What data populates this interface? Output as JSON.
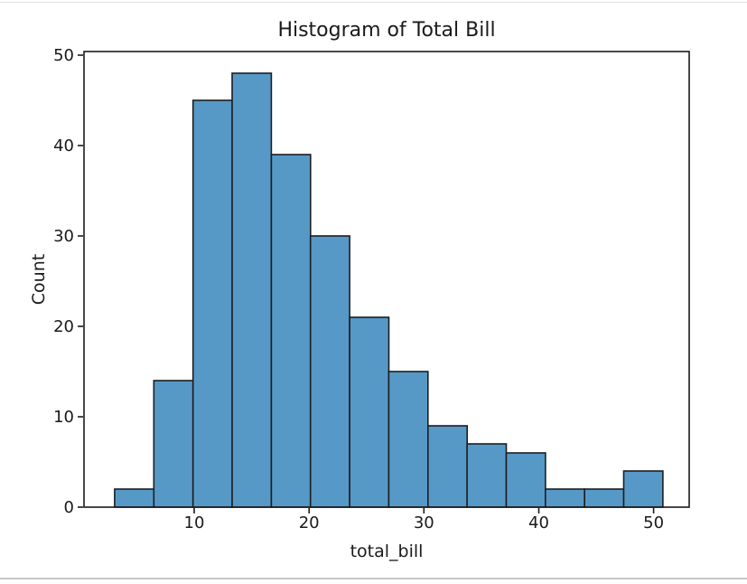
{
  "figure": {
    "title": "Histogram of Total Bill",
    "xlabel": "total_bill",
    "ylabel": "Count"
  },
  "chart_data": {
    "type": "bar",
    "chart_kind": "histogram",
    "title": "Histogram of Total Bill",
    "xlabel": "total_bill",
    "ylabel": "Count",
    "bin_edges": [
      3.07,
      6.48,
      9.89,
      13.3,
      16.71,
      20.12,
      23.53,
      26.94,
      30.35,
      33.76,
      37.17,
      40.58,
      43.99,
      47.4,
      50.81
    ],
    "counts": [
      2,
      14,
      45,
      48,
      39,
      30,
      21,
      15,
      9,
      7,
      6,
      2,
      2,
      4
    ],
    "xticks": [
      10,
      20,
      30,
      40,
      50
    ],
    "yticks": [
      0,
      10,
      20,
      30,
      40,
      50
    ],
    "xlim": [
      0.4,
      53.1
    ],
    "ylim": [
      0,
      50.4
    ],
    "grid": false,
    "legend_position": "none",
    "colors": {
      "bar_fill": "#5799c6",
      "bar_edge": "#1b1e21",
      "axis": "#1b1b1b",
      "text": "#1a1a1a",
      "background": "#ffffff"
    }
  }
}
